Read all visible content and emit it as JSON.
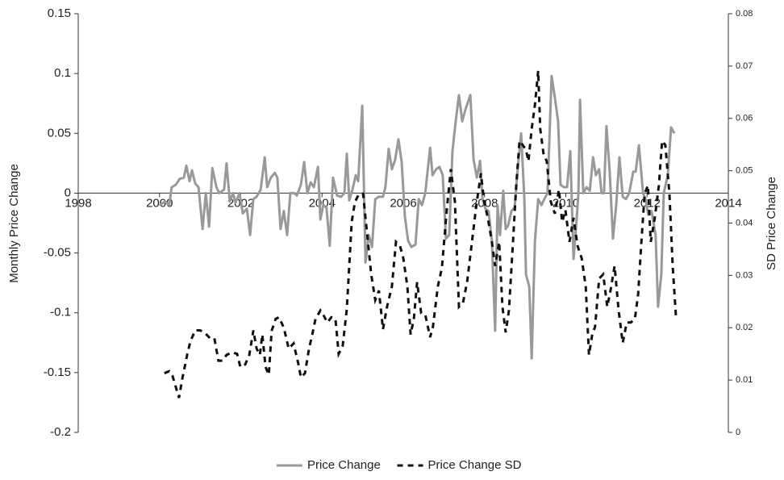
{
  "chart_data": {
    "type": "line",
    "y_label": "Monthly Price Change",
    "y2_label": "SD Price Change",
    "xlim": [
      1998,
      2014
    ],
    "xticks": [
      1998,
      2000,
      2002,
      2004,
      2006,
      2008,
      2010,
      2012,
      2014
    ],
    "ylim": [
      -0.2,
      0.15
    ],
    "yticks": [
      -0.2,
      -0.15,
      -0.1,
      -0.05,
      0,
      0.05,
      0.1,
      0.15
    ],
    "y2lim": [
      0,
      0.08
    ],
    "y2ticks": [
      0,
      0.01,
      0.02,
      0.03,
      0.04,
      0.05,
      0.06,
      0.07,
      0.08
    ],
    "legend": "bottom",
    "series": [
      {
        "name": "Price Change",
        "color": "#999999",
        "style": "solid",
        "x": [
          2000.0,
          2000.14,
          2000.24,
          2000.3,
          2000.4,
          2000.5,
          2000.6,
          2000.66,
          2000.74,
          2000.8,
          2000.88,
          2000.96,
          2001.06,
          2001.14,
          2001.22,
          2001.3,
          2001.4,
          2001.47,
          2001.59,
          2001.65,
          2001.73,
          2001.81,
          2001.87,
          2001.97,
          2002.05,
          2002.15,
          2002.23,
          2002.31,
          2002.39,
          2002.49,
          2002.59,
          2002.65,
          2002.74,
          2002.84,
          2002.9,
          2002.98,
          2003.06,
          2003.14,
          2003.22,
          2003.32,
          2003.38,
          2003.48,
          2003.56,
          2003.64,
          2003.72,
          2003.8,
          2003.9,
          2003.96,
          2004.03,
          2004.11,
          2004.19,
          2004.27,
          2004.37,
          2004.47,
          2004.55,
          2004.61,
          2004.67,
          2004.75,
          2004.83,
          2004.89,
          2004.99,
          2005.07,
          2005.15,
          2005.23,
          2005.31,
          2005.4,
          2005.5,
          2005.56,
          2005.64,
          2005.72,
          2005.8,
          2005.88,
          2005.96,
          2006.04,
          2006.12,
          2006.2,
          2006.3,
          2006.38,
          2006.46,
          2006.54,
          2006.66,
          2006.72,
          2006.81,
          2006.89,
          2006.97,
          2007.05,
          2007.13,
          2007.21,
          2007.29,
          2007.37,
          2007.45,
          2007.53,
          2007.65,
          2007.73,
          2007.81,
          2007.89,
          2007.95,
          2008.02,
          2008.1,
          2008.18,
          2008.26,
          2008.32,
          2008.38,
          2008.46,
          2008.52,
          2008.58,
          2008.66,
          2008.74,
          2008.82,
          2008.9,
          2008.98,
          2009.02,
          2009.1,
          2009.16,
          2009.24,
          2009.32,
          2009.4,
          2009.47,
          2009.55,
          2009.65,
          2009.73,
          2009.81,
          2009.87,
          2009.95,
          2010.03,
          2010.11,
          2010.19,
          2010.27,
          2010.31,
          2010.35,
          2010.43,
          2010.51,
          2010.59,
          2010.67,
          2010.74,
          2010.82,
          2010.88,
          2010.94,
          2011.0,
          2011.08,
          2011.16,
          2011.24,
          2011.32,
          2011.4,
          2011.48,
          2011.56,
          2011.66,
          2011.72,
          2011.8,
          2011.9,
          2011.96,
          2012.03,
          2012.11,
          2012.21,
          2012.27,
          2012.35,
          2012.41,
          2012.51,
          2012.59,
          2012.67
        ],
        "values": [
          -0.01,
          -0.007,
          -0.01,
          0.005,
          0.007,
          0.012,
          0.013,
          0.023,
          0.01,
          0.019,
          0.008,
          0.005,
          -0.03,
          0.0,
          -0.028,
          0.021,
          0.005,
          0.0,
          0.003,
          0.025,
          -0.007,
          0.0,
          -0.008,
          0.0,
          -0.017,
          -0.013,
          -0.035,
          -0.005,
          -0.003,
          0.003,
          0.03,
          0.005,
          0.013,
          0.017,
          0.013,
          -0.03,
          -0.015,
          -0.035,
          0.0,
          0.0,
          -0.002,
          0.007,
          0.026,
          0.0,
          0.009,
          0.005,
          0.022,
          -0.022,
          -0.01,
          -0.012,
          -0.044,
          0.013,
          -0.002,
          -0.003,
          0.0,
          0.033,
          -0.006,
          0.003,
          0.015,
          0.01,
          0.073,
          -0.058,
          -0.035,
          -0.045,
          -0.005,
          -0.003,
          -0.003,
          0.005,
          0.037,
          0.02,
          0.028,
          0.045,
          0.026,
          -0.02,
          -0.04,
          -0.045,
          -0.043,
          -0.005,
          -0.01,
          0.0,
          0.038,
          0.015,
          0.02,
          0.022,
          0.015,
          -0.038,
          -0.035,
          0.035,
          0.06,
          0.082,
          0.06,
          0.07,
          0.082,
          0.028,
          0.013,
          0.027,
          -0.005,
          -0.013,
          -0.015,
          -0.04,
          -0.115,
          -0.01,
          -0.035,
          0.002,
          -0.03,
          -0.027,
          -0.015,
          -0.012,
          0.022,
          0.05,
          -0.005,
          -0.068,
          -0.078,
          -0.138,
          -0.04,
          -0.005,
          -0.01,
          -0.005,
          0.0,
          0.098,
          0.08,
          0.06,
          0.007,
          0.005,
          0.005,
          0.035,
          -0.055,
          -0.02,
          0.0,
          0.078,
          0.0,
          0.005,
          0.002,
          0.03,
          0.015,
          0.02,
          0.0,
          0.0,
          0.056,
          0.018,
          -0.038,
          -0.01,
          0.03,
          -0.003,
          -0.005,
          0.0,
          0.018,
          0.018,
          0.04,
          0.0,
          -0.005,
          -0.018,
          -0.015,
          -0.035,
          -0.095,
          -0.068,
          0.0,
          0.015,
          0.055,
          0.05
        ]
      },
      {
        "name": "Price Change SD",
        "color": "#111111",
        "style": "dashed",
        "axis": "y2",
        "x": [
          2000.12,
          2000.24,
          2000.32,
          2000.48,
          2000.56,
          2000.68,
          2000.76,
          2000.88,
          2001.0,
          2001.12,
          2001.24,
          2001.35,
          2001.45,
          2001.55,
          2001.65,
          2001.79,
          2001.91,
          2001.99,
          2002.11,
          2002.21,
          2002.31,
          2002.39,
          2002.47,
          2002.53,
          2002.61,
          2002.69,
          2002.76,
          2002.86,
          2002.94,
          2003.06,
          2003.18,
          2003.3,
          2003.42,
          2003.48,
          2003.58,
          2003.68,
          2003.76,
          2003.84,
          2003.96,
          2004.03,
          2004.13,
          2004.23,
          2004.33,
          2004.41,
          2004.51,
          2004.61,
          2004.67,
          2004.73,
          2004.81,
          2004.91,
          2005.01,
          2005.13,
          2005.21,
          2005.31,
          2005.4,
          2005.5,
          2005.6,
          2005.72,
          2005.82,
          2005.92,
          2006.0,
          2006.1,
          2006.18,
          2006.26,
          2006.34,
          2006.44,
          2006.54,
          2006.66,
          2006.73,
          2006.85,
          2006.95,
          2007.07,
          2007.17,
          2007.27,
          2007.37,
          2007.47,
          2007.57,
          2007.69,
          2007.79,
          2007.91,
          2007.99,
          2008.08,
          2008.18,
          2008.26,
          2008.36,
          2008.44,
          2008.52,
          2008.6,
          2008.7,
          2008.78,
          2008.86,
          2008.94,
          2009.02,
          2009.08,
          2009.16,
          2009.24,
          2009.32,
          2009.37,
          2009.45,
          2009.53,
          2009.63,
          2009.73,
          2009.83,
          2009.91,
          2009.99,
          2010.09,
          2010.19,
          2010.29,
          2010.39,
          2010.49,
          2010.57,
          2010.65,
          2010.72,
          2010.82,
          2010.92,
          2011.02,
          2011.1,
          2011.2,
          2011.3,
          2011.4,
          2011.5,
          2011.6,
          2011.7,
          2011.78,
          2011.86,
          2011.94,
          2012.02,
          2012.09,
          2012.19,
          2012.29,
          2012.37,
          2012.45,
          2012.55,
          2012.63,
          2012.71
        ],
        "values": [
          0.0113,
          0.0117,
          0.0108,
          0.0066,
          0.0102,
          0.0148,
          0.0174,
          0.0195,
          0.0195,
          0.019,
          0.018,
          0.018,
          0.0137,
          0.0137,
          0.0148,
          0.0153,
          0.015,
          0.0125,
          0.013,
          0.0148,
          0.0195,
          0.016,
          0.0148,
          0.0187,
          0.0125,
          0.011,
          0.0194,
          0.0217,
          0.022,
          0.02,
          0.016,
          0.017,
          0.013,
          0.0105,
          0.0113,
          0.016,
          0.0187,
          0.0217,
          0.0233,
          0.0225,
          0.021,
          0.022,
          0.0217,
          0.015,
          0.0166,
          0.0236,
          0.0318,
          0.0402,
          0.044,
          0.0456,
          0.0456,
          0.0364,
          0.0302,
          0.0253,
          0.0271,
          0.0197,
          0.024,
          0.0279,
          0.0364,
          0.0356,
          0.0333,
          0.0279,
          0.0187,
          0.0217,
          0.0287,
          0.0228,
          0.0225,
          0.0182,
          0.0202,
          0.0279,
          0.0314,
          0.0425,
          0.0503,
          0.0441,
          0.024,
          0.0248,
          0.0287,
          0.0364,
          0.0429,
          0.0495,
          0.0441,
          0.041,
          0.0364,
          0.0318,
          0.0364,
          0.024,
          0.0191,
          0.0233,
          0.0364,
          0.0472,
          0.0557,
          0.0549,
          0.054,
          0.0518,
          0.058,
          0.0626,
          0.0691,
          0.058,
          0.0533,
          0.0518,
          0.0441,
          0.0418,
          0.0464,
          0.0402,
          0.0425,
          0.0364,
          0.041,
          0.0356,
          0.0333,
          0.0279,
          0.0148,
          0.0187,
          0.0202,
          0.0294,
          0.0302,
          0.024,
          0.0271,
          0.0318,
          0.0233,
          0.0171,
          0.021,
          0.021,
          0.0217,
          0.0264,
          0.0364,
          0.0456,
          0.0472,
          0.0364,
          0.041,
          0.0472,
          0.0557,
          0.0549,
          0.0456,
          0.0318,
          0.0222
        ]
      }
    ]
  }
}
